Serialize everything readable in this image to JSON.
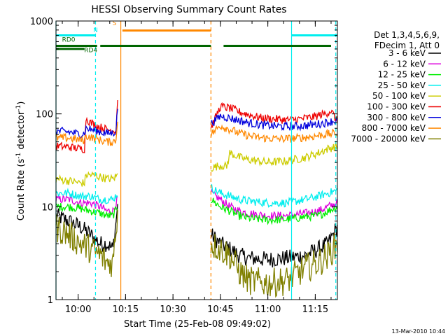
{
  "chart_data": {
    "type": "line",
    "title": "HESSI Observing Summary Count Rates",
    "xlabel": "Start Time (25-Feb-08 09:49:02)",
    "ylabel_main": "Count Rate (s",
    "ylabel_sup1": "-1",
    "ylabel_mid": " detector",
    "ylabel_sup2": "-1",
    "ylabel_end": ")",
    "y_scale": "log",
    "ylim": [
      1,
      1000
    ],
    "xlim_minutes": [
      -7,
      82
    ],
    "x_ticks": [
      {
        "label": "10:00",
        "t": 0
      },
      {
        "label": "10:15",
        "t": 15
      },
      {
        "label": "10:30",
        "t": 30
      },
      {
        "label": "10:45",
        "t": 45
      },
      {
        "label": "11:00",
        "t": 60
      },
      {
        "label": "11:15",
        "t": 75
      }
    ],
    "y_ticks": [
      {
        "label": "1",
        "v": 1
      },
      {
        "label": "10",
        "v": 10
      },
      {
        "label": "100",
        "v": 100
      },
      {
        "label": "1000",
        "v": 1000
      }
    ],
    "legend_header": [
      "Det 1,3,4,5,6,9,",
      "FDecim 1, Att 0"
    ],
    "legend_placement": "right",
    "timestamp": "13-Mar-2010 10:44",
    "gap_minutes": [
      13.5,
      42
    ],
    "series": [
      {
        "name": "3 - 6 keV",
        "color": "#000000",
        "pre": [
          [
            -7,
            8
          ],
          [
            -3,
            7
          ],
          [
            1,
            6
          ],
          [
            4,
            5
          ],
          [
            7,
            4
          ],
          [
            9,
            4
          ],
          [
            11,
            3.5
          ],
          [
            12.5,
            10
          ]
        ],
        "post": [
          [
            42,
            5
          ],
          [
            45,
            4
          ],
          [
            48,
            3.5
          ],
          [
            51,
            3
          ],
          [
            54,
            2.8
          ],
          [
            60,
            2.7
          ],
          [
            66,
            2.8
          ],
          [
            72,
            3
          ],
          [
            76,
            3.5
          ],
          [
            79,
            4
          ],
          [
            82,
            6
          ]
        ]
      },
      {
        "name": "6 - 12 keV",
        "color": "#dd00dd",
        "pre": [
          [
            -7,
            12
          ],
          [
            -3,
            12
          ],
          [
            1,
            11
          ],
          [
            4,
            11
          ],
          [
            7,
            10
          ],
          [
            9,
            9
          ],
          [
            11,
            9
          ],
          [
            12.5,
            12
          ]
        ],
        "post": [
          [
            42,
            14
          ],
          [
            45,
            12
          ],
          [
            48,
            10
          ],
          [
            51,
            9
          ],
          [
            54,
            8.5
          ],
          [
            60,
            8
          ],
          [
            66,
            8
          ],
          [
            72,
            8.5
          ],
          [
            76,
            9
          ],
          [
            79,
            10
          ],
          [
            82,
            11
          ]
        ]
      },
      {
        "name": "12 - 25 keV",
        "color": "#00ee00",
        "pre": [
          [
            -7,
            10
          ],
          [
            -3,
            10
          ],
          [
            1,
            9.5
          ],
          [
            4,
            9
          ],
          [
            7,
            8.5
          ],
          [
            9,
            8
          ],
          [
            11,
            8
          ],
          [
            12.5,
            10
          ]
        ],
        "post": [
          [
            42,
            12
          ],
          [
            45,
            10
          ],
          [
            48,
            9
          ],
          [
            51,
            8
          ],
          [
            54,
            7.5
          ],
          [
            60,
            7.2
          ],
          [
            66,
            7.3
          ],
          [
            72,
            7.8
          ],
          [
            76,
            8
          ],
          [
            79,
            9
          ],
          [
            82,
            10
          ]
        ]
      },
      {
        "name": "25 - 50 keV",
        "color": "#00eeee",
        "pre": [
          [
            -7,
            14
          ],
          [
            -3,
            14
          ],
          [
            1,
            13
          ],
          [
            4,
            13
          ],
          [
            7,
            12
          ],
          [
            9,
            12
          ],
          [
            11,
            12
          ],
          [
            12.5,
            14
          ]
        ],
        "post": [
          [
            42,
            16
          ],
          [
            45,
            14
          ],
          [
            48,
            13
          ],
          [
            51,
            12
          ],
          [
            54,
            11.5
          ],
          [
            60,
            11
          ],
          [
            66,
            11
          ],
          [
            72,
            12
          ],
          [
            76,
            13
          ],
          [
            79,
            14
          ],
          [
            82,
            15
          ]
        ]
      },
      {
        "name": "50 - 100 keV",
        "color": "#cccc00",
        "pre": [
          [
            -7,
            20
          ],
          [
            -3,
            19
          ],
          [
            1,
            18
          ],
          [
            2,
            18
          ],
          [
            2.5,
            22
          ],
          [
            4,
            22
          ],
          [
            7,
            21
          ],
          [
            9,
            20
          ],
          [
            11,
            20
          ],
          [
            12.5,
            22
          ]
        ],
        "post": [
          [
            42,
            26
          ],
          [
            45,
            28
          ],
          [
            47,
            27
          ],
          [
            48,
            38
          ],
          [
            51,
            34
          ],
          [
            54,
            32
          ],
          [
            60,
            30
          ],
          [
            66,
            31
          ],
          [
            72,
            34
          ],
          [
            76,
            38
          ],
          [
            79,
            42
          ],
          [
            82,
            45
          ]
        ]
      },
      {
        "name": "100 - 300 keV",
        "color": "#ee0000",
        "pre": [
          [
            -7,
            45
          ],
          [
            -3,
            44
          ],
          [
            1,
            42
          ],
          [
            2,
            42
          ],
          [
            2.5,
            90
          ],
          [
            4,
            80
          ],
          [
            7,
            72
          ],
          [
            9,
            68
          ],
          [
            11,
            66
          ],
          [
            12,
            68
          ],
          [
            12.5,
            150
          ]
        ],
        "post": [
          [
            42,
            70
          ],
          [
            45,
            120
          ],
          [
            48,
            115
          ],
          [
            51,
            105
          ],
          [
            54,
            98
          ],
          [
            58,
            90
          ],
          [
            62,
            88
          ],
          [
            66,
            86
          ],
          [
            70,
            88
          ],
          [
            74,
            92
          ],
          [
            78,
            100
          ],
          [
            80,
            108
          ],
          [
            82,
            82
          ]
        ]
      },
      {
        "name": "300 - 800 keV",
        "color": "#0000dd",
        "pre": [
          [
            -7,
            65
          ],
          [
            -3,
            64
          ],
          [
            1,
            60
          ],
          [
            2,
            62
          ],
          [
            2.5,
            70
          ],
          [
            4,
            68
          ],
          [
            7,
            64
          ],
          [
            9,
            62
          ],
          [
            11,
            62
          ],
          [
            12,
            66
          ],
          [
            12.5,
            120
          ]
        ],
        "post": [
          [
            42,
            78
          ],
          [
            45,
            95
          ],
          [
            48,
            90
          ],
          [
            51,
            85
          ],
          [
            54,
            80
          ],
          [
            58,
            76
          ],
          [
            62,
            74
          ],
          [
            66,
            73
          ],
          [
            70,
            74
          ],
          [
            74,
            76
          ],
          [
            78,
            80
          ],
          [
            82,
            85
          ]
        ]
      },
      {
        "name": "800 - 7000 keV",
        "color": "#ff8800",
        "pre": [
          [
            -7,
            55
          ],
          [
            -3,
            55
          ],
          [
            1,
            52
          ],
          [
            2,
            52
          ],
          [
            2.5,
            58
          ],
          [
            4,
            56
          ],
          [
            7,
            52
          ],
          [
            9,
            50
          ],
          [
            11,
            50
          ],
          [
            12,
            52
          ],
          [
            12.5,
            90
          ]
        ],
        "post": [
          [
            42,
            60
          ],
          [
            45,
            75
          ],
          [
            48,
            68
          ],
          [
            51,
            62
          ],
          [
            54,
            58
          ],
          [
            58,
            55
          ],
          [
            62,
            54
          ],
          [
            66,
            54
          ],
          [
            70,
            55
          ],
          [
            74,
            57
          ],
          [
            78,
            60
          ],
          [
            82,
            62
          ]
        ]
      },
      {
        "name": "7000 - 20000 keV",
        "color": "#808000",
        "pre": [
          [
            -7,
            6
          ],
          [
            -3,
            5
          ],
          [
            1,
            4
          ],
          [
            4,
            3.5
          ],
          [
            7,
            3
          ],
          [
            9,
            2.5
          ],
          [
            11,
            2.5
          ],
          [
            12.5,
            9
          ]
        ],
        "post": [
          [
            42,
            4
          ],
          [
            45,
            3.5
          ],
          [
            48,
            3
          ],
          [
            51,
            2
          ],
          [
            54,
            1.6
          ],
          [
            60,
            1.5
          ],
          [
            66,
            1.6
          ],
          [
            72,
            2.2
          ],
          [
            76,
            2.5
          ],
          [
            79,
            3
          ],
          [
            82,
            4
          ]
        ]
      }
    ],
    "vlines": [
      {
        "t": -7,
        "color": "#00eeee",
        "style": "solid"
      },
      {
        "t": 5.5,
        "color": "#00eeee",
        "style": "dashed"
      },
      {
        "t": 13.5,
        "color": "#ff8800",
        "style": "solid"
      },
      {
        "t": 42,
        "color": "#ff8800",
        "style": "dashed"
      },
      {
        "t": 67.5,
        "color": "#00eeee",
        "style": "solid"
      },
      {
        "t": 81.5,
        "color": "#00eeee",
        "style": "dashed"
      }
    ],
    "flags": [
      {
        "label": "N",
        "color": "#00eeee",
        "label_t": 5.5,
        "label_v": 760,
        "segments": [
          [
            -7,
            5.5,
            700
          ],
          [
            67.5,
            82,
            700
          ]
        ]
      },
      {
        "label": "S",
        "color": "#ff8800",
        "label_t": 11.5,
        "label_v": 900,
        "segments": [
          [
            14,
            42,
            790
          ]
        ]
      },
      {
        "label": "RD0",
        "color": "#006600",
        "label_t": -3,
        "label_v": 600,
        "segments": [
          [
            -7,
            6,
            540
          ],
          [
            7,
            42,
            540
          ],
          [
            46,
            80,
            540
          ]
        ]
      },
      {
        "label": "RD4",
        "color": "#006600",
        "label_t": 4,
        "label_v": 460,
        "segments": [
          [
            -7,
            2,
            500
          ]
        ]
      }
    ]
  }
}
